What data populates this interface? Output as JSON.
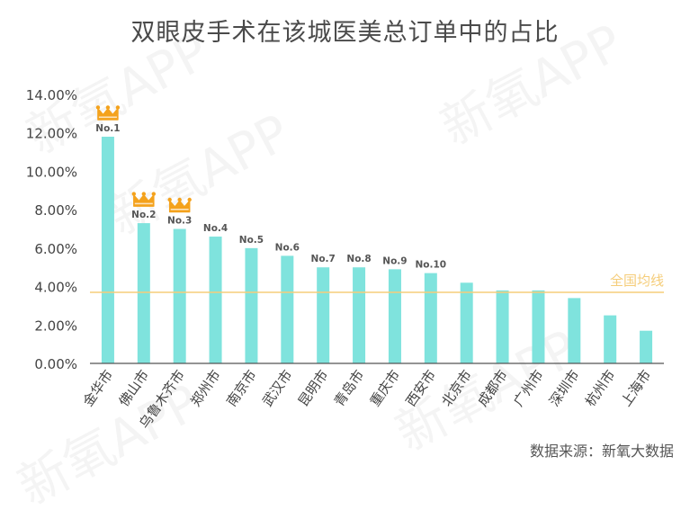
{
  "title": "双眼皮手术在该城医美总订单中的占比",
  "source": "数据来源：新氧大数据",
  "watermark": "新氧APP",
  "colors": {
    "bar": "#7fe3dd",
    "average_line": "#f5cd7a",
    "crown": "#f4a21c",
    "axis": "#555555",
    "gridline": "#dddddd"
  },
  "chart_data": {
    "type": "bar",
    "title": "双眼皮手术在该城医美总订单中的占比",
    "categories": [
      "金华市",
      "佛山市",
      "乌鲁木齐市",
      "郑州市",
      "南京市",
      "武汉市",
      "昆明市",
      "青岛市",
      "重庆市",
      "西安市",
      "北京市",
      "成都市",
      "广州市",
      "深圳市",
      "杭州市",
      "上海市"
    ],
    "values": [
      11.8,
      7.3,
      7.0,
      6.6,
      6.0,
      5.6,
      5.0,
      5.0,
      4.9,
      4.7,
      4.2,
      3.8,
      3.8,
      3.4,
      2.5,
      1.7
    ],
    "rank_labels": [
      "No.1",
      "No.2",
      "No.3",
      "No.4",
      "No.5",
      "No.6",
      "No.7",
      "No.8",
      "No.9",
      "No.10"
    ],
    "crowned_ranks": 3,
    "ylim": [
      0,
      14
    ],
    "yticks": [
      0,
      2,
      4,
      6,
      8,
      10,
      12,
      14
    ],
    "ytick_labels": [
      "0.00%",
      "2.00%",
      "4.00%",
      "6.00%",
      "8.00%",
      "10.00%",
      "12.00%",
      "14.00%"
    ],
    "average": {
      "label": "全国均线",
      "value": 3.7
    },
    "grid": false,
    "xlabel": "",
    "ylabel": ""
  }
}
